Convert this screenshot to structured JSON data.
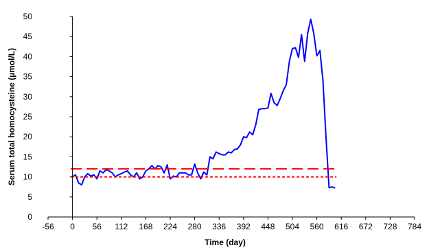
{
  "chart_data": {
    "type": "line",
    "title": "",
    "xlabel": "Time (day)",
    "ylabel": "Serum total homocysteine (µmol/L)",
    "xlim": [
      -56,
      784
    ],
    "ylim": [
      0,
      50
    ],
    "x_ticks": [
      -56,
      0,
      56,
      112,
      168,
      224,
      280,
      336,
      392,
      448,
      504,
      560,
      616,
      672,
      728,
      784
    ],
    "y_ticks": [
      0,
      5,
      10,
      15,
      20,
      25,
      30,
      35,
      40,
      45,
      50
    ],
    "grid": false,
    "legend": "none",
    "series": [
      {
        "color": "#0000ff",
        "style": "solid",
        "x": [
          0,
          7,
          14,
          21,
          28,
          35,
          42,
          49,
          56,
          63,
          70,
          77,
          84,
          91,
          98,
          105,
          112,
          119,
          126,
          133,
          140,
          147,
          154,
          161,
          168,
          175,
          182,
          189,
          196,
          203,
          210,
          217,
          224,
          231,
          238,
          245,
          252,
          259,
          266,
          273,
          280,
          287,
          294,
          301,
          308,
          315,
          322,
          329,
          336,
          343,
          350,
          357,
          364,
          371,
          378,
          385,
          392,
          399,
          406,
          413,
          420,
          427,
          434,
          441,
          448,
          455,
          462,
          469,
          476,
          483,
          490,
          497,
          504,
          511,
          518,
          525,
          532,
          539,
          546,
          553,
          560,
          567,
          574,
          581,
          588,
          595,
          602
        ],
        "y": [
          10,
          10.5,
          8.5,
          8,
          10,
          10.8,
          10.2,
          10.5,
          9.5,
          11.5,
          11,
          11.8,
          11.5,
          11,
          10,
          10.5,
          10.8,
          11.2,
          11.5,
          10.5,
          10,
          11,
          9.5,
          10,
          11.5,
          12,
          12.8,
          12,
          12.8,
          12.5,
          11,
          13,
          9.5,
          10.2,
          10,
          11,
          11,
          11,
          10.5,
          10.5,
          13.2,
          11,
          9.5,
          11.2,
          10.5,
          15,
          14.5,
          16.2,
          15.8,
          15.5,
          15.5,
          16.2,
          16,
          16.8,
          17,
          18,
          20,
          19.8,
          21.2,
          20.5,
          23,
          26.8,
          27,
          27,
          27.2,
          30.8,
          28.5,
          27.8,
          29.5,
          31.5,
          33,
          38.8,
          42,
          42.2,
          39.8,
          45.5,
          38.8,
          45.8,
          49.3,
          45.8,
          40.2,
          41.5,
          34,
          20,
          7.3,
          7.5,
          7.2
        ]
      },
      {
        "color": "#ff0000",
        "style": "long-dash",
        "x": [
          -4,
          605
        ],
        "y": [
          12,
          12
        ]
      },
      {
        "color": "#ff0000",
        "style": "short-dash",
        "x": [
          -4,
          605
        ],
        "y": [
          10,
          10
        ]
      }
    ]
  }
}
